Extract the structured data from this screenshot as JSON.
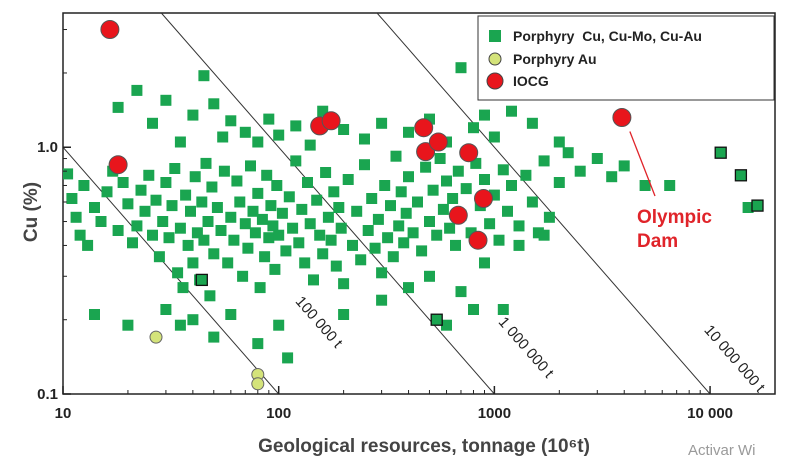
{
  "chart_data": {
    "type": "scatter",
    "title": "",
    "xlabel": "Geological resources, tonnage (10⁶t)",
    "ylabel": "Cu (%)",
    "x_scale": "log",
    "y_scale": "log",
    "xlim": [
      10,
      20000
    ],
    "ylim": [
      0.1,
      3.5
    ],
    "x_tick_labels": [
      "10",
      "100",
      "1000",
      "10 000"
    ],
    "y_tick_labels": [
      "0.1",
      "1.0"
    ],
    "legend_position": "top-right",
    "grid": false,
    "series": [
      {
        "name": "Porphyry  Cu, Cu-Mo, Cu-Au",
        "marker": "square",
        "color": "#1aa550",
        "points": [
          [
            10.5,
            0.78
          ],
          [
            11,
            0.62
          ],
          [
            11.5,
            0.52
          ],
          [
            12,
            0.44
          ],
          [
            12.5,
            0.7
          ],
          [
            13,
            0.4
          ],
          [
            14,
            0.57
          ],
          [
            15,
            0.5
          ],
          [
            16,
            0.66
          ],
          [
            17,
            0.8
          ],
          [
            18,
            0.46
          ],
          [
            19,
            0.72
          ],
          [
            20,
            0.59
          ],
          [
            21,
            0.41
          ],
          [
            22,
            0.48
          ],
          [
            23,
            0.67
          ],
          [
            24,
            0.55
          ],
          [
            25,
            0.77
          ],
          [
            26,
            0.44
          ],
          [
            27,
            0.61
          ],
          [
            28,
            0.36
          ],
          [
            29,
            0.5
          ],
          [
            30,
            0.72
          ],
          [
            31,
            0.43
          ],
          [
            32,
            0.58
          ],
          [
            33,
            0.82
          ],
          [
            34,
            0.31
          ],
          [
            35,
            0.47
          ],
          [
            36,
            0.27
          ],
          [
            37,
            0.64
          ],
          [
            38,
            0.4
          ],
          [
            39,
            0.55
          ],
          [
            40,
            0.34
          ],
          [
            41,
            0.76
          ],
          [
            42,
            0.45
          ],
          [
            43,
            0.29
          ],
          [
            44,
            0.6
          ],
          [
            45,
            0.42
          ],
          [
            46,
            0.86
          ],
          [
            47,
            0.5
          ],
          [
            48,
            0.25
          ],
          [
            49,
            0.69
          ],
          [
            50,
            0.37
          ],
          [
            52,
            0.57
          ],
          [
            54,
            0.46
          ],
          [
            56,
            0.8
          ],
          [
            58,
            0.34
          ],
          [
            60,
            0.52
          ],
          [
            62,
            0.42
          ],
          [
            64,
            0.73
          ],
          [
            66,
            0.6
          ],
          [
            68,
            0.3
          ],
          [
            70,
            0.49
          ],
          [
            72,
            0.39
          ],
          [
            74,
            0.84
          ],
          [
            76,
            0.55
          ],
          [
            78,
            0.45
          ],
          [
            80,
            0.65
          ],
          [
            82,
            0.27
          ],
          [
            84,
            0.51
          ],
          [
            86,
            0.36
          ],
          [
            88,
            0.77
          ],
          [
            90,
            0.43
          ],
          [
            92,
            0.58
          ],
          [
            94,
            0.48
          ],
          [
            96,
            0.32
          ],
          [
            98,
            0.7
          ],
          [
            100,
            0.44
          ],
          [
            104,
            0.54
          ],
          [
            108,
            0.38
          ],
          [
            112,
            0.63
          ],
          [
            116,
            0.47
          ],
          [
            120,
            0.88
          ],
          [
            124,
            0.41
          ],
          [
            128,
            0.56
          ],
          [
            132,
            0.34
          ],
          [
            136,
            0.72
          ],
          [
            140,
            0.49
          ],
          [
            145,
            0.29
          ],
          [
            150,
            0.61
          ],
          [
            155,
            0.44
          ],
          [
            160,
            0.37
          ],
          [
            165,
            0.79
          ],
          [
            170,
            0.52
          ],
          [
            175,
            0.42
          ],
          [
            180,
            0.66
          ],
          [
            185,
            0.33
          ],
          [
            190,
            0.57
          ],
          [
            195,
            0.47
          ],
          [
            200,
            0.28
          ],
          [
            210,
            0.74
          ],
          [
            220,
            0.4
          ],
          [
            230,
            0.55
          ],
          [
            240,
            0.35
          ],
          [
            250,
            0.85
          ],
          [
            260,
            0.46
          ],
          [
            270,
            0.62
          ],
          [
            280,
            0.39
          ],
          [
            290,
            0.51
          ],
          [
            300,
            0.31
          ],
          [
            310,
            0.7
          ],
          [
            320,
            0.43
          ],
          [
            330,
            0.58
          ],
          [
            340,
            0.36
          ],
          [
            350,
            0.92
          ],
          [
            360,
            0.48
          ],
          [
            370,
            0.66
          ],
          [
            380,
            0.41
          ],
          [
            390,
            0.54
          ],
          [
            400,
            0.76
          ],
          [
            420,
            0.45
          ],
          [
            440,
            0.6
          ],
          [
            460,
            0.38
          ],
          [
            480,
            0.83
          ],
          [
            500,
            0.5
          ],
          [
            520,
            0.67
          ],
          [
            540,
            0.44
          ],
          [
            560,
            0.9
          ],
          [
            580,
            0.56
          ],
          [
            600,
            0.73
          ],
          [
            620,
            0.47
          ],
          [
            640,
            0.62
          ],
          [
            660,
            0.4
          ],
          [
            680,
            0.8
          ],
          [
            700,
            0.53
          ],
          [
            740,
            0.68
          ],
          [
            780,
            0.45
          ],
          [
            820,
            0.86
          ],
          [
            860,
            0.58
          ],
          [
            900,
            0.74
          ],
          [
            950,
            0.49
          ],
          [
            1000,
            0.64
          ],
          [
            1050,
            0.42
          ],
          [
            1100,
            0.81
          ],
          [
            1150,
            0.55
          ],
          [
            1200,
            0.7
          ],
          [
            1300,
            0.48
          ],
          [
            1400,
            0.77
          ],
          [
            1500,
            0.6
          ],
          [
            1600,
            0.45
          ],
          [
            1700,
            0.88
          ],
          [
            1800,
            0.52
          ],
          [
            2000,
            0.72
          ],
          [
            2200,
            0.95
          ],
          [
            2500,
            0.8
          ],
          [
            3000,
            0.9
          ],
          [
            3500,
            0.76
          ],
          [
            4000,
            0.84
          ],
          [
            5000,
            0.7
          ],
          [
            18,
            1.45
          ],
          [
            22,
            1.7
          ],
          [
            26,
            1.25
          ],
          [
            30,
            1.55
          ],
          [
            35,
            1.05
          ],
          [
            40,
            1.35
          ],
          [
            45,
            1.95
          ],
          [
            50,
            1.5
          ],
          [
            55,
            1.1
          ],
          [
            60,
            1.28
          ],
          [
            70,
            1.15
          ],
          [
            80,
            1.05
          ],
          [
            90,
            1.3
          ],
          [
            100,
            1.12
          ],
          [
            120,
            1.22
          ],
          [
            140,
            1.02
          ],
          [
            160,
            1.4
          ],
          [
            200,
            1.18
          ],
          [
            250,
            1.08
          ],
          [
            300,
            1.25
          ],
          [
            400,
            1.15
          ],
          [
            500,
            1.3
          ],
          [
            600,
            1.05
          ],
          [
            700,
            2.1
          ],
          [
            800,
            1.2
          ],
          [
            900,
            1.35
          ],
          [
            1000,
            1.1
          ],
          [
            1200,
            1.4
          ],
          [
            1500,
            1.25
          ],
          [
            2000,
            1.05
          ],
          [
            1300,
            1.75
          ],
          [
            6500,
            0.7
          ],
          [
            15000,
            0.57
          ],
          [
            30,
            0.22
          ],
          [
            35,
            0.19
          ],
          [
            40,
            0.2
          ],
          [
            50,
            0.17
          ],
          [
            60,
            0.21
          ],
          [
            80,
            0.16
          ],
          [
            100,
            0.19
          ],
          [
            110,
            0.14
          ],
          [
            200,
            0.21
          ],
          [
            300,
            0.24
          ],
          [
            400,
            0.27
          ],
          [
            500,
            0.3
          ],
          [
            600,
            0.19
          ],
          [
            700,
            0.26
          ],
          [
            800,
            0.22
          ],
          [
            900,
            0.34
          ],
          [
            1100,
            0.22
          ],
          [
            1300,
            0.4
          ],
          [
            1700,
            0.44
          ],
          [
            14,
            0.21
          ],
          [
            20,
            0.19
          ]
        ]
      },
      {
        "name": "Porphyry Au",
        "marker": "circle",
        "color": "#d4e37a",
        "points": [
          [
            27,
            0.17
          ],
          [
            80,
            0.12
          ],
          [
            80,
            0.11
          ]
        ]
      },
      {
        "name": "IOCG",
        "marker": "circle",
        "color": "#e8151c",
        "points": [
          [
            16.5,
            3.0
          ],
          [
            18,
            0.85
          ],
          [
            155,
            1.22
          ],
          [
            175,
            1.28
          ],
          [
            470,
            1.2
          ],
          [
            480,
            0.96
          ],
          [
            550,
            1.05
          ],
          [
            680,
            0.53
          ],
          [
            760,
            0.95
          ],
          [
            840,
            0.42
          ],
          [
            890,
            0.62
          ],
          [
            3900,
            1.32
          ]
        ]
      },
      {
        "name": "",
        "marker": "square-outlined",
        "color": "#1aa550",
        "points": [
          [
            44,
            0.29
          ],
          [
            540,
            0.2
          ],
          [
            11200,
            0.95
          ],
          [
            13900,
            0.77
          ],
          [
            16600,
            0.58
          ]
        ]
      }
    ],
    "isolines": [
      {
        "label": "100 000 t",
        "tonnage_mt": 0.1
      },
      {
        "label": "1 000 000 t",
        "tonnage_mt": 1.0
      },
      {
        "label": "10 000 000 t",
        "tonnage_mt": 10.0
      }
    ],
    "annotations": [
      {
        "lines": [
          "Olympic",
          "Dam"
        ],
        "color": "#e0242a",
        "points_to": [
          3900,
          1.32
        ]
      }
    ]
  },
  "watermark": "Activar Wi"
}
